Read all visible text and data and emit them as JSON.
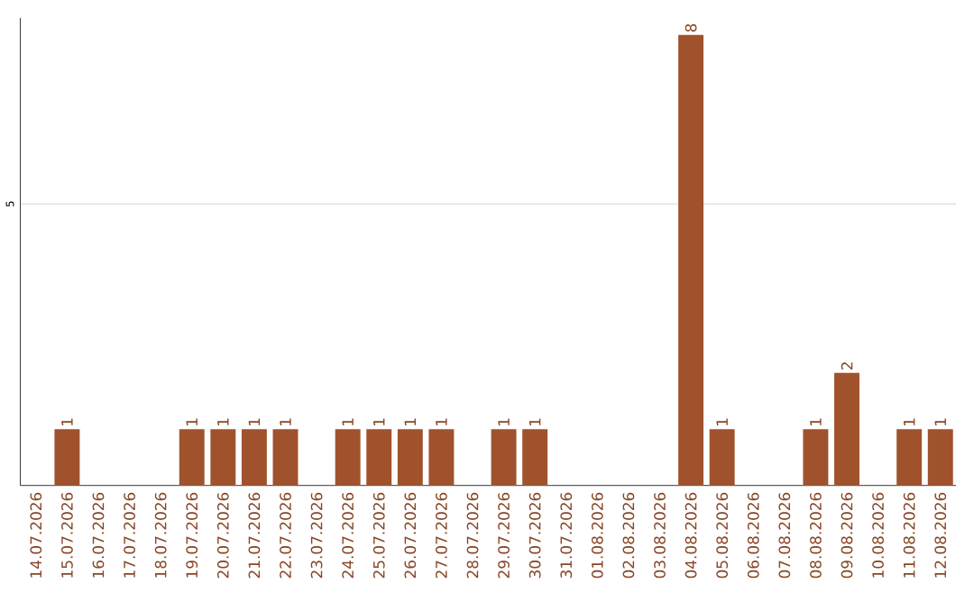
{
  "chart_data": {
    "type": "bar",
    "categories": [
      "14.07.2026",
      "15.07.2026",
      "16.07.2026",
      "17.07.2026",
      "18.07.2026",
      "19.07.2026",
      "20.07.2026",
      "21.07.2026",
      "22.07.2026",
      "23.07.2026",
      "24.07.2026",
      "25.07.2026",
      "26.07.2026",
      "27.07.2026",
      "28.07.2026",
      "29.07.2026",
      "30.07.2026",
      "31.07.2026",
      "01.08.2026",
      "02.08.2026",
      "03.08.2026",
      "04.08.2026",
      "05.08.2026",
      "06.08.2026",
      "07.08.2026",
      "08.08.2026",
      "09.08.2026",
      "10.08.2026",
      "11.08.2026",
      "12.08.2026"
    ],
    "values": [
      0,
      1,
      0,
      0,
      0,
      1,
      1,
      1,
      1,
      0,
      1,
      1,
      1,
      1,
      0,
      1,
      1,
      0,
      0,
      0,
      0,
      8,
      1,
      0,
      0,
      1,
      2,
      0,
      1,
      1
    ],
    "value_labels": [
      null,
      "1",
      null,
      null,
      null,
      "1",
      "1",
      "1",
      "1",
      null,
      "1",
      "1",
      "1",
      "1",
      null,
      "1",
      "1",
      null,
      null,
      null,
      null,
      "8",
      "1",
      null,
      null,
      "1",
      "2",
      null,
      "1",
      "1"
    ],
    "color": "#a0522d",
    "ylim": [
      0,
      8.3
    ],
    "yticks": [
      5
    ],
    "grid": "y"
  }
}
